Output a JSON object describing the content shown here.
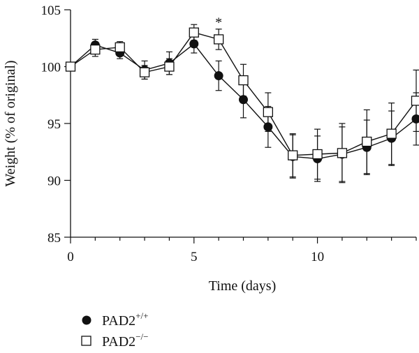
{
  "chart_data": {
    "type": "line",
    "title": "",
    "xlabel": "Time (days)",
    "ylabel": "Weight (% of original)",
    "xlim": [
      0,
      14
    ],
    "ylim": [
      85,
      105
    ],
    "xticks": [
      0,
      5,
      10
    ],
    "yticks": [
      85,
      90,
      95,
      100,
      105
    ],
    "grid": false,
    "legend_position": "bottom-left, below plot",
    "x": [
      0,
      1,
      2,
      3,
      4,
      5,
      6,
      7,
      8,
      9,
      10,
      11,
      12,
      13,
      14
    ],
    "series": [
      {
        "name": "PAD2",
        "superscript": "+/+",
        "marker": "filled-circle",
        "color": "#111111",
        "values": [
          100.0,
          101.9,
          101.2,
          99.7,
          100.3,
          102.0,
          99.2,
          97.1,
          94.7,
          92.1,
          91.9,
          92.3,
          92.9,
          93.7,
          95.4
        ],
        "error": [
          0.3,
          0.5,
          0.5,
          0.8,
          1.0,
          0.8,
          1.3,
          1.6,
          1.8,
          1.9,
          2.0,
          2.4,
          2.4,
          2.4,
          2.3
        ]
      },
      {
        "name": "PAD2",
        "superscript": "−/−",
        "marker": "open-square",
        "color": "#111111",
        "values": [
          100.0,
          101.5,
          101.7,
          99.5,
          100.0,
          103.0,
          102.4,
          98.8,
          96.0,
          92.2,
          92.3,
          92.4,
          93.4,
          94.1,
          97.0
        ],
        "error": [
          0.3,
          0.6,
          0.5,
          0.6,
          0.7,
          0.7,
          0.9,
          1.4,
          1.7,
          1.9,
          2.2,
          2.6,
          2.8,
          2.7,
          2.7
        ]
      }
    ],
    "annotations": [
      {
        "text": "*",
        "x": 6,
        "y": 104
      }
    ]
  }
}
